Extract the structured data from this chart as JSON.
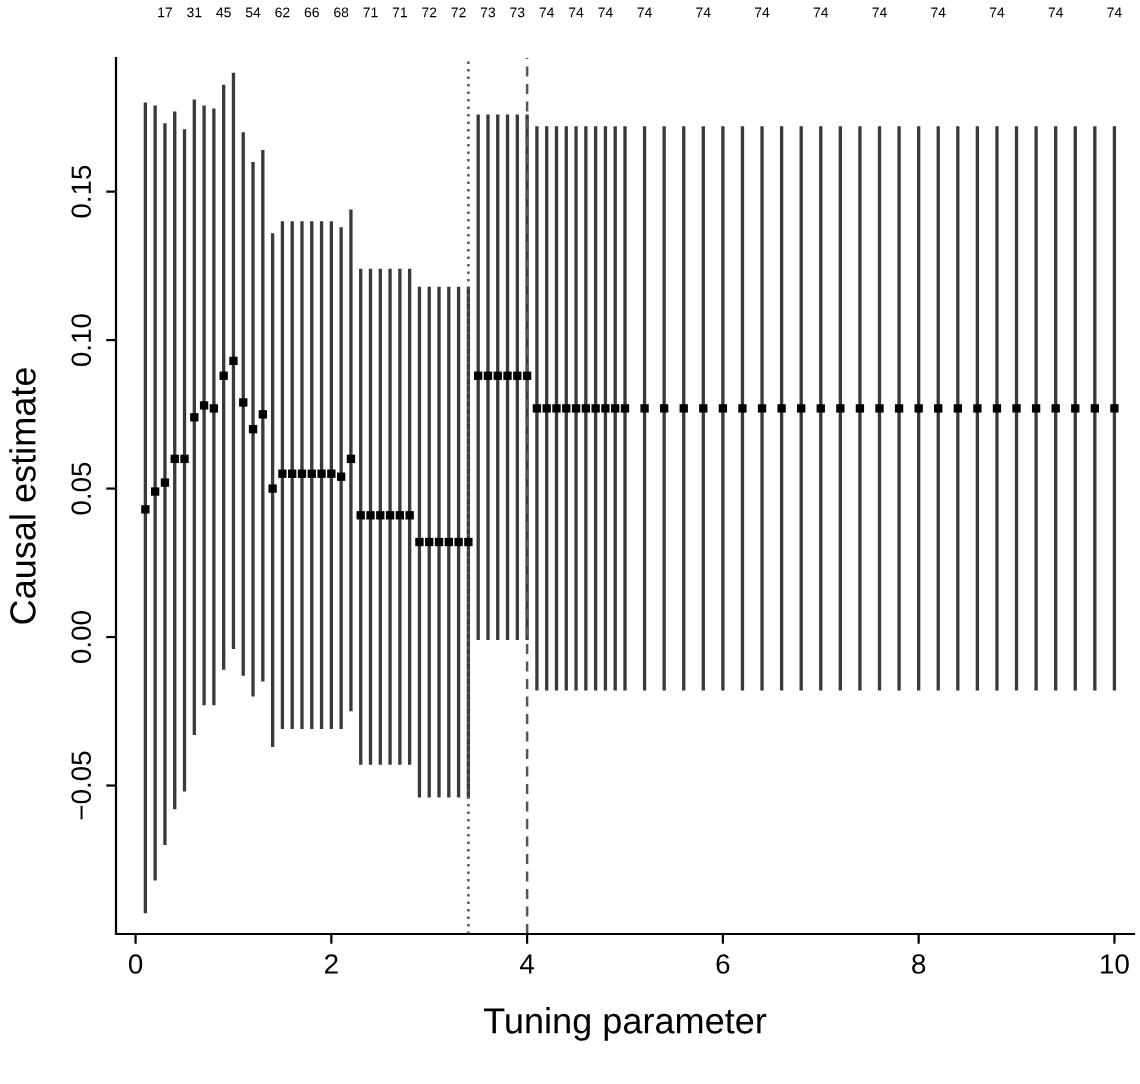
{
  "chart_data": {
    "type": "scatter",
    "xlabel": "Tuning parameter",
    "ylabel": "Causal estimate",
    "x": [
      0.1,
      0.2,
      0.3,
      0.4,
      0.5,
      0.6,
      0.7,
      0.8,
      0.9,
      1.0,
      1.1,
      1.2,
      1.3,
      1.4,
      1.5,
      1.6,
      1.7,
      1.8,
      1.9,
      2.0,
      2.1,
      2.2,
      2.3,
      2.4,
      2.5,
      2.6,
      2.7,
      2.8,
      2.9,
      3.0,
      3.1,
      3.2,
      3.3,
      3.4,
      3.5,
      3.6,
      3.7,
      3.8,
      3.9,
      4.0,
      4.1,
      4.2,
      4.3,
      4.4,
      4.5,
      4.6,
      4.7,
      4.8,
      4.9,
      5.0,
      5.2,
      5.4,
      5.6,
      5.8,
      6.0,
      6.2,
      6.4,
      6.6,
      6.8,
      7.0,
      7.2,
      7.4,
      7.6,
      7.8,
      8.0,
      8.2,
      8.4,
      8.6,
      8.8,
      9.0,
      9.2,
      9.4,
      9.6,
      9.8,
      10.0
    ],
    "series": [
      {
        "color": "#000000",
        "values": [
          0.043,
          0.049,
          0.052,
          0.06,
          0.06,
          0.074,
          0.078,
          0.077,
          0.088,
          0.093,
          0.079,
          0.07,
          0.075,
          0.05,
          0.055,
          0.055,
          0.055,
          0.055,
          0.055,
          0.055,
          0.054,
          0.06,
          0.041,
          0.041,
          0.041,
          0.041,
          0.041,
          0.041,
          0.032,
          0.032,
          0.032,
          0.032,
          0.032,
          0.032,
          0.088,
          0.088,
          0.088,
          0.088,
          0.088,
          0.088,
          0.077,
          0.077,
          0.077,
          0.077,
          0.077,
          0.077,
          0.077,
          0.077,
          0.077,
          0.077,
          0.077,
          0.077,
          0.077,
          0.077,
          0.077,
          0.077,
          0.077,
          0.077,
          0.077,
          0.077,
          0.077,
          0.077,
          0.077,
          0.077,
          0.077,
          0.077,
          0.077,
          0.077,
          0.077,
          0.077,
          0.077,
          0.077,
          0.077,
          0.077,
          0.077
        ],
        "errors": [
          [
            -0.093,
            0.18
          ],
          [
            -0.082,
            0.179
          ],
          [
            -0.07,
            0.173
          ],
          [
            -0.058,
            0.177
          ],
          [
            -0.052,
            0.171
          ],
          [
            -0.033,
            0.181
          ],
          [
            -0.023,
            0.179
          ],
          [
            -0.023,
            0.178
          ],
          [
            -0.011,
            0.186
          ],
          [
            -0.004,
            0.19
          ],
          [
            -0.013,
            0.17
          ],
          [
            -0.02,
            0.16
          ],
          [
            -0.015,
            0.164
          ],
          [
            -0.037,
            0.136
          ],
          [
            -0.031,
            0.14
          ],
          [
            -0.031,
            0.14
          ],
          [
            -0.031,
            0.14
          ],
          [
            -0.031,
            0.14
          ],
          [
            -0.031,
            0.14
          ],
          [
            -0.031,
            0.14
          ],
          [
            -0.031,
            0.138
          ],
          [
            -0.025,
            0.144
          ],
          [
            -0.043,
            0.124
          ],
          [
            -0.043,
            0.124
          ],
          [
            -0.043,
            0.124
          ],
          [
            -0.043,
            0.124
          ],
          [
            -0.043,
            0.124
          ],
          [
            -0.043,
            0.124
          ],
          [
            -0.054,
            0.118
          ],
          [
            -0.054,
            0.118
          ],
          [
            -0.054,
            0.118
          ],
          [
            -0.054,
            0.118
          ],
          [
            -0.054,
            0.118
          ],
          [
            -0.054,
            0.118
          ],
          [
            -0.001,
            0.176
          ],
          [
            -0.001,
            0.176
          ],
          [
            -0.001,
            0.176
          ],
          [
            -0.001,
            0.176
          ],
          [
            -0.001,
            0.176
          ],
          [
            -0.001,
            0.176
          ],
          [
            -0.018,
            0.172
          ],
          [
            -0.018,
            0.172
          ],
          [
            -0.018,
            0.172
          ],
          [
            -0.018,
            0.172
          ],
          [
            -0.018,
            0.172
          ],
          [
            -0.018,
            0.172
          ],
          [
            -0.018,
            0.172
          ],
          [
            -0.018,
            0.172
          ],
          [
            -0.018,
            0.172
          ],
          [
            -0.018,
            0.172
          ],
          [
            -0.018,
            0.172
          ],
          [
            -0.018,
            0.172
          ],
          [
            -0.018,
            0.172
          ],
          [
            -0.018,
            0.172
          ],
          [
            -0.018,
            0.172
          ],
          [
            -0.018,
            0.172
          ],
          [
            -0.018,
            0.172
          ],
          [
            -0.018,
            0.172
          ],
          [
            -0.018,
            0.172
          ],
          [
            -0.018,
            0.172
          ],
          [
            -0.018,
            0.172
          ],
          [
            -0.018,
            0.172
          ],
          [
            -0.018,
            0.172
          ],
          [
            -0.018,
            0.172
          ],
          [
            -0.018,
            0.172
          ],
          [
            -0.018,
            0.172
          ],
          [
            -0.018,
            0.172
          ],
          [
            -0.018,
            0.172
          ],
          [
            -0.018,
            0.172
          ],
          [
            -0.018,
            0.172
          ],
          [
            -0.018,
            0.172
          ],
          [
            -0.018,
            0.172
          ],
          [
            -0.018,
            0.172
          ],
          [
            -0.018,
            0.172
          ],
          [
            -0.018,
            0.172
          ]
        ]
      }
    ],
    "marker": "square",
    "xlim": [
      -0.2,
      10.2
    ],
    "xticks": [
      0,
      2,
      4,
      6,
      8,
      10
    ],
    "ylim": [
      -0.1,
      0.195
    ],
    "yticks": [
      {
        "value": -0.05,
        "label": "−0.05"
      },
      {
        "value": 0.0,
        "label": "0.00"
      },
      {
        "value": 0.05,
        "label": "0.05"
      },
      {
        "value": 0.1,
        "label": "0.10"
      },
      {
        "value": 0.15,
        "label": "0.15"
      }
    ],
    "annotations": [
      "17",
      "31",
      "45",
      "54",
      "62",
      "66",
      "68",
      "71",
      "71",
      "72",
      "72",
      "73",
      "73",
      "74",
      "74",
      "74",
      "74",
      "74",
      "74",
      "74",
      "74",
      "74",
      "74",
      "74",
      "74"
    ],
    "ref_lines": [
      {
        "axis": "x",
        "value": 3.4,
        "line_style": "dotted",
        "color": "#555555"
      },
      {
        "axis": "x",
        "value": 4.0,
        "line_style": "dashed",
        "color": "#555555"
      }
    ],
    "grid": false,
    "legend": false
  }
}
